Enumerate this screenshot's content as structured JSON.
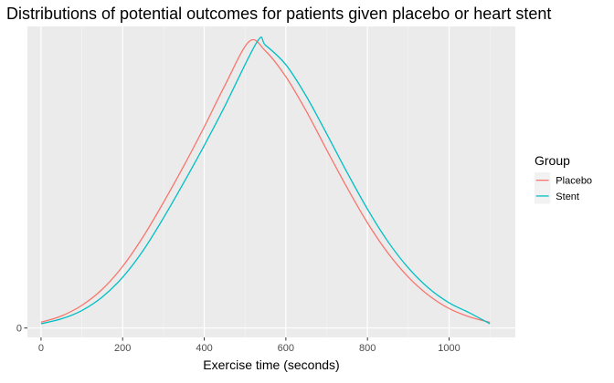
{
  "chart_data": {
    "type": "line",
    "title": "Distributions of potential outcomes for patients given placebo or heart stent",
    "xlabel": "Exercise time (seconds)",
    "ylabel": "",
    "xlim": [
      0,
      1100
    ],
    "ylim": [
      0,
      1
    ],
    "x_ticks": [
      0,
      200,
      400,
      600,
      800,
      1000
    ],
    "x_tick_labels": [
      "0",
      "200",
      "400",
      "600",
      "800",
      "1000"
    ],
    "y_ticks": [
      0
    ],
    "y_tick_labels": [
      "0"
    ],
    "grid": true,
    "legend": {
      "title": "Group",
      "position": "right"
    },
    "series": [
      {
        "name": "Placebo",
        "color": "#F8766D",
        "x": [
          0,
          50,
          100,
          150,
          200,
          250,
          300,
          350,
          400,
          450,
          510,
          550,
          600,
          650,
          700,
          750,
          800,
          850,
          900,
          950,
          1000,
          1050,
          1100
        ],
        "y": [
          0.02,
          0.042,
          0.079,
          0.135,
          0.215,
          0.318,
          0.438,
          0.566,
          0.702,
          0.845,
          1.0,
          0.967,
          0.877,
          0.757,
          0.622,
          0.49,
          0.367,
          0.262,
          0.178,
          0.114,
          0.068,
          0.039,
          0.02
        ]
      },
      {
        "name": "Stent",
        "color": "#00BFC4",
        "x": [
          0,
          50,
          100,
          150,
          200,
          250,
          300,
          350,
          400,
          450,
          530,
          550,
          600,
          650,
          700,
          750,
          800,
          850,
          900,
          950,
          1000,
          1050,
          1100
        ],
        "y": [
          0.015,
          0.032,
          0.061,
          0.108,
          0.177,
          0.27,
          0.384,
          0.508,
          0.637,
          0.773,
          1.0,
          0.987,
          0.919,
          0.809,
          0.678,
          0.543,
          0.415,
          0.302,
          0.21,
          0.139,
          0.088,
          0.053,
          0.015
        ]
      }
    ]
  }
}
